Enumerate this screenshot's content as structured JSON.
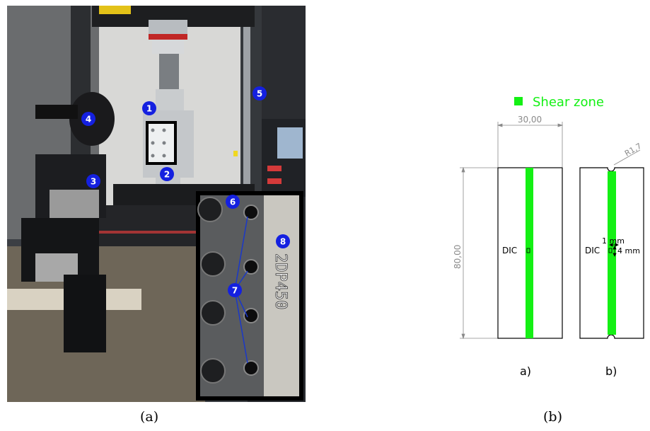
{
  "photo": {
    "markers": [
      "1",
      "2",
      "3",
      "4",
      "5",
      "6",
      "7",
      "8"
    ],
    "specimen_text": "2DP450"
  },
  "diagram": {
    "legend_label": "Shear zone",
    "width_dim": "30,00",
    "height_dim": "80,00",
    "radius_dim": "R1,7",
    "dic_label_a": "DIC",
    "dic_label_b": "DIC",
    "dim_1mm": "1 mm",
    "dim_4mm": "4 mm",
    "label_a": "a)",
    "label_b": "b)",
    "colors": {
      "shear_zone": "#14f014",
      "line": "#000000",
      "dim": "#8a8a8a"
    }
  },
  "captions": {
    "a": "(a)",
    "b": "(b)"
  }
}
